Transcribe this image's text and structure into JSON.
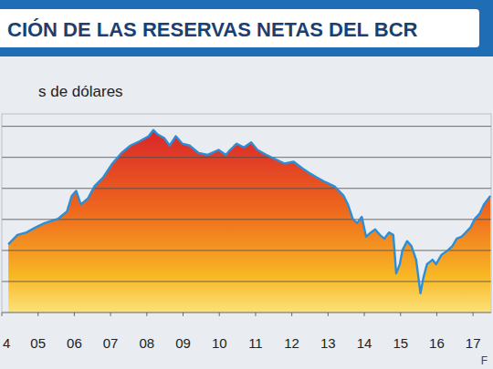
{
  "chart_data": {
    "type": "area",
    "title": "CIÓN DE LAS RESERVAS NETAS DEL BCR",
    "subtitle": "s de dólares",
    "source": "F",
    "x": [
      2004.68,
      2004.93,
      2005.18,
      2005.43,
      2005.68,
      2006.05,
      2006.3,
      2006.43,
      2006.55,
      2006.68,
      2006.88,
      2007.05,
      2007.3,
      2007.55,
      2007.8,
      2008.05,
      2008.3,
      2008.55,
      2008.68,
      2008.8,
      2008.98,
      2009.13,
      2009.3,
      2009.48,
      2009.68,
      2009.93,
      2010.18,
      2010.48,
      2010.68,
      2010.8,
      2010.98,
      2011.18,
      2011.38,
      2011.55,
      2011.8,
      2012.05,
      2012.3,
      2012.55,
      2012.8,
      2012.98,
      2013.18,
      2013.43,
      2013.68,
      2013.93,
      2014.05,
      2014.18,
      2014.3,
      2014.43,
      2014.55,
      2014.68,
      2014.8,
      2014.93,
      2015.05,
      2015.18,
      2015.3,
      2015.38,
      2015.48,
      2015.55,
      2015.68,
      2015.8,
      2015.93,
      2016.05,
      2016.13,
      2016.23,
      2016.38,
      2016.48,
      2016.63,
      2016.8,
      2016.93,
      2017.05,
      2017.18,
      2017.3,
      2017.43,
      2017.55,
      2017.68,
      2017.8,
      2017.98
    ],
    "values": [
      11.0,
      12.5,
      12.9,
      13.7,
      14.4,
      15.1,
      16.3,
      18.8,
      19.6,
      17.4,
      18.4,
      20.3,
      21.8,
      24.0,
      25.7,
      26.9,
      27.6,
      28.4,
      29.4,
      28.7,
      28.1,
      26.9,
      28.4,
      27.2,
      26.9,
      25.7,
      25.4,
      26.2,
      25.4,
      26.2,
      27.2,
      26.6,
      27.4,
      26.2,
      25.4,
      24.7,
      24.0,
      24.3,
      23.2,
      22.5,
      21.8,
      21.0,
      20.3,
      18.8,
      17.4,
      15.1,
      14.4,
      15.4,
      12.2,
      12.9,
      13.4,
      12.5,
      11.9,
      12.9,
      12.5,
      6.3,
      7.8,
      10.0,
      11.5,
      10.7,
      8.5,
      3.1,
      5.6,
      7.8,
      8.5,
      7.8,
      9.3,
      10.0,
      10.7,
      11.9,
      12.2,
      12.9,
      13.7,
      15.1,
      15.9,
      17.4,
      18.8
    ],
    "color": "#2b8fd8",
    "xlim": [
      2004.5,
      2018.0
    ],
    "xticks": [
      {
        "value": 2004.5,
        "label": "4"
      },
      {
        "value": 2005.5,
        "label": "05"
      },
      {
        "value": 2006.5,
        "label": "06"
      },
      {
        "value": 2007.5,
        "label": "07"
      },
      {
        "value": 2008.5,
        "label": "08"
      },
      {
        "value": 2009.5,
        "label": "09"
      },
      {
        "value": 2010.5,
        "label": "10"
      },
      {
        "value": 2011.5,
        "label": "11"
      },
      {
        "value": 2012.5,
        "label": "12"
      },
      {
        "value": 2013.5,
        "label": "13"
      },
      {
        "value": 2014.5,
        "label": "14"
      },
      {
        "value": 2015.5,
        "label": "15"
      },
      {
        "value": 2016.5,
        "label": "16"
      },
      {
        "value": 2017.5,
        "label": "17"
      }
    ],
    "ylim": [
      0,
      32
    ],
    "yticks": [
      0,
      5,
      10,
      15,
      20,
      25,
      30
    ],
    "grid": true,
    "tick_labels": "x"
  }
}
